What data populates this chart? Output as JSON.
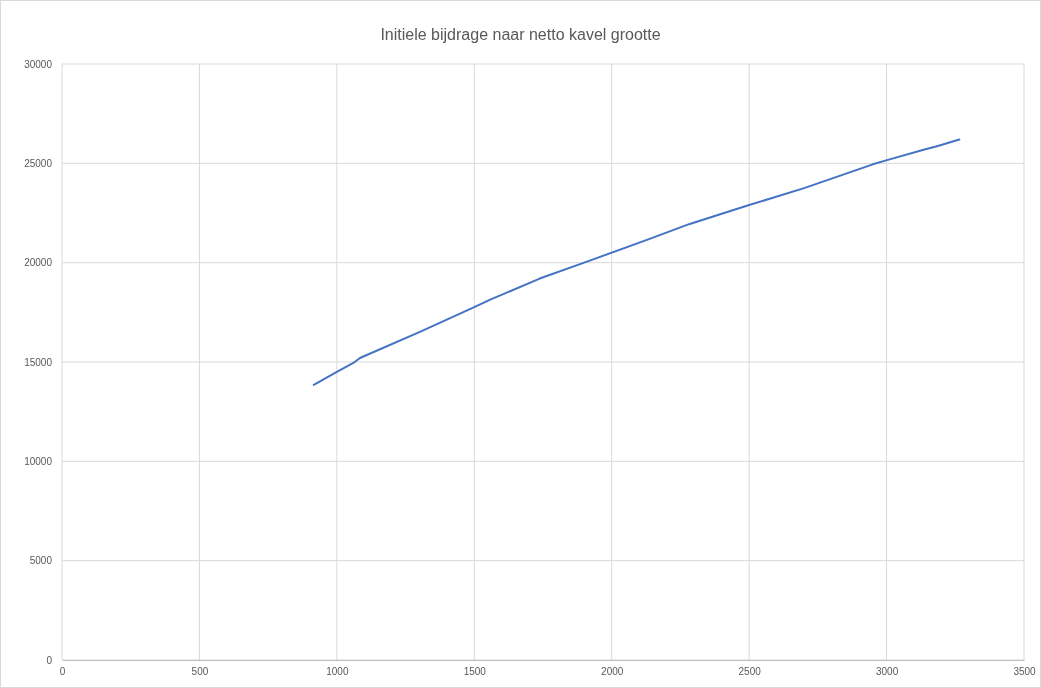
{
  "chart_data": {
    "type": "line",
    "title": "Initiele bijdrage naar netto kavel grootte",
    "series": [
      {
        "color": "#4472c4",
        "x": [
          916,
          1000,
          1060,
          1084,
          1300,
          1498,
          1560,
          1738,
          1900,
          2138,
          2284,
          2500,
          2700,
          2950,
          3011,
          3138,
          3180,
          3265
        ],
        "values": [
          13850,
          14500,
          14950,
          15200,
          16500,
          17750,
          18150,
          19200,
          20000,
          21200,
          21950,
          22900,
          23750,
          24950,
          25200,
          25700,
          25850,
          26200
        ]
      }
    ],
    "xlim": [
      0,
      3500
    ],
    "xticks": [
      0,
      500,
      1000,
      1500,
      2000,
      2500,
      3000,
      3500
    ],
    "ylim": [
      0,
      30000
    ],
    "yticks": [
      0,
      5000,
      10000,
      15000,
      20000,
      25000,
      30000
    ],
    "grid": true,
    "marker": "none",
    "line_style": "solid"
  }
}
